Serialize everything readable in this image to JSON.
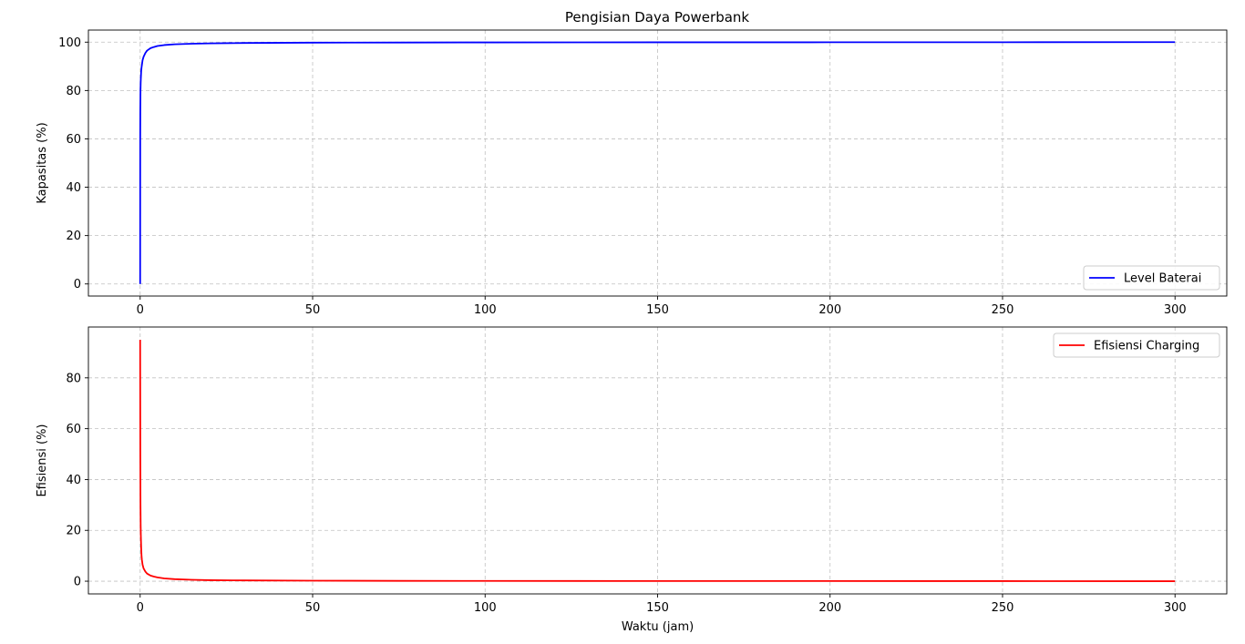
{
  "figure": {
    "title": "Pengisian Daya Powerbank"
  },
  "chart_data": [
    {
      "type": "line",
      "title": "Pengisian Daya Powerbank",
      "xlabel": "",
      "ylabel": "Kapasitas (%)",
      "xlim": [
        -15,
        315
      ],
      "ylim": [
        -5,
        105
      ],
      "xticks": [
        0,
        50,
        100,
        150,
        200,
        250,
        300
      ],
      "yticks": [
        0,
        20,
        40,
        60,
        80,
        100
      ],
      "grid": true,
      "legend_position": "lower-right",
      "series": [
        {
          "name": "Level Baterai",
          "color": "#0000ff",
          "x": [
            0,
            0.02,
            0.05,
            0.1,
            0.15,
            0.2,
            0.3,
            0.4,
            0.5,
            0.7,
            1,
            1.5,
            2,
            3,
            4,
            5,
            7,
            10,
            15,
            20,
            30,
            50,
            75,
            100,
            150,
            200,
            250,
            300
          ],
          "y": [
            0,
            60,
            72,
            80,
            83,
            85,
            88,
            89.5,
            90.5,
            92.5,
            94,
            95.5,
            96.5,
            97.5,
            98,
            98.4,
            98.8,
            99.1,
            99.35,
            99.5,
            99.65,
            99.8,
            99.85,
            99.9,
            99.93,
            99.95,
            99.97,
            100
          ]
        }
      ]
    },
    {
      "type": "line",
      "title": "",
      "xlabel": "Waktu (jam)",
      "ylabel": "Efisiensi (%)",
      "xlim": [
        -15,
        315
      ],
      "ylim": [
        -5,
        100
      ],
      "xticks": [
        0,
        50,
        100,
        150,
        200,
        250,
        300
      ],
      "yticks": [
        0,
        20,
        40,
        60,
        80
      ],
      "grid": true,
      "legend_position": "upper-right",
      "series": [
        {
          "name": "Efisiensi Charging",
          "color": "#ff0000",
          "x": [
            0,
            0.02,
            0.05,
            0.1,
            0.15,
            0.2,
            0.3,
            0.4,
            0.5,
            0.7,
            1,
            1.5,
            2,
            3,
            4,
            5,
            7,
            10,
            15,
            20,
            30,
            50,
            75,
            100,
            150,
            200,
            250,
            300
          ],
          "y": [
            95,
            75,
            50,
            30,
            22,
            18,
            13,
            10,
            8.5,
            6.5,
            5,
            3.8,
            3,
            2.2,
            1.8,
            1.5,
            1.1,
            0.8,
            0.55,
            0.4,
            0.3,
            0.2,
            0.12,
            0.1,
            0.07,
            0.05,
            0.03,
            0
          ]
        }
      ]
    }
  ]
}
